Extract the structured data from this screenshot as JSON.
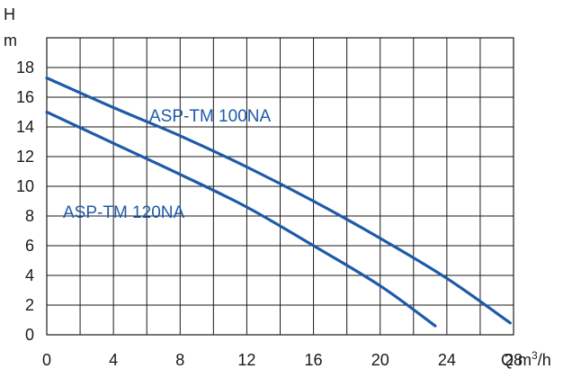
{
  "chart_data": {
    "type": "line",
    "ylabel": "H",
    "yunit": "m",
    "xlabel": "Q m",
    "xunit_sup": "3",
    "xunit_tail": "/h",
    "xlim": [
      0,
      28
    ],
    "ylim": [
      0,
      20
    ],
    "xticks": [
      0,
      4,
      8,
      12,
      16,
      20,
      24,
      28
    ],
    "yticks": [
      0,
      2,
      4,
      6,
      8,
      10,
      12,
      14,
      16,
      18
    ],
    "grid": true,
    "color": "#1e5aa8",
    "series": [
      {
        "name": "ASP-TM 100NA",
        "x": [
          0,
          4,
          8,
          12,
          16,
          20,
          24,
          27.8
        ],
        "y": [
          17.3,
          15.3,
          13.4,
          11.3,
          9.0,
          6.5,
          3.8,
          0.8
        ]
      },
      {
        "name": "ASP-TM 120NA",
        "x": [
          0,
          4,
          8,
          12,
          16,
          20,
          23.3
        ],
        "y": [
          15.0,
          12.9,
          10.8,
          8.6,
          6.0,
          3.3,
          0.6
        ]
      }
    ]
  }
}
